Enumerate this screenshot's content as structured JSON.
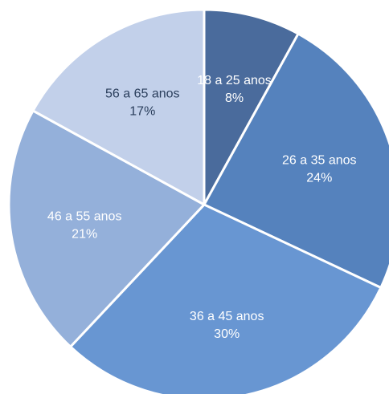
{
  "chart_data": {
    "type": "pie",
    "categories": [
      "18 a 25 anos",
      "26 a 35 anos",
      "36 a 45 anos",
      "46 a 55 anos",
      "56 a 65 anos"
    ],
    "values": [
      8,
      24,
      30,
      21,
      17
    ],
    "data_labels": [
      "8%",
      "24%",
      "30%",
      "21%",
      "17%"
    ],
    "colors": [
      "#4a6b9c",
      "#5582bd",
      "#6896d2",
      "#94b0da",
      "#c2d0ea"
    ],
    "label_colors": [
      "#ffffff",
      "#ffffff",
      "#ffffff",
      "#ffffff",
      "#2a3e5c"
    ],
    "start_angle_deg": 0,
    "direction": "clockwise",
    "legend": "none",
    "title": ""
  }
}
